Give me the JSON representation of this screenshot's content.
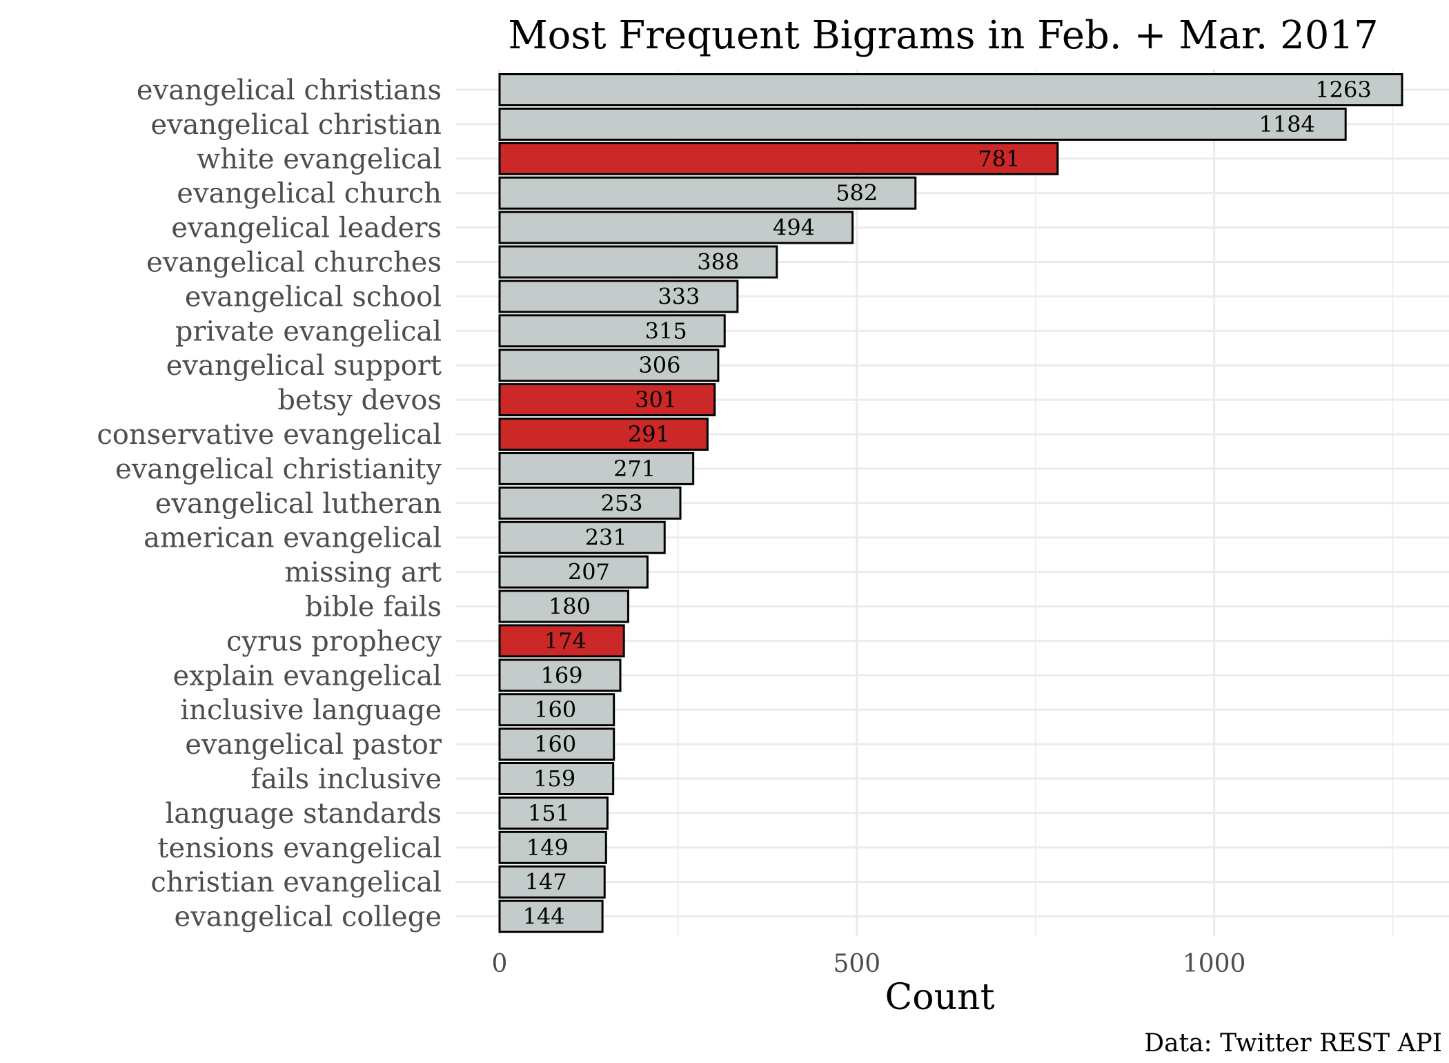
{
  "chart_data": {
    "type": "bar",
    "orientation": "horizontal",
    "title": "Most Frequent Bigrams in Feb. + Mar. 2017",
    "xlabel": "Count",
    "ylabel": "",
    "caption": "Data: Twitter REST API",
    "xlim": [
      0,
      1300
    ],
    "x_ticks": [
      0,
      500,
      1000
    ],
    "x_tick_labels": [
      "0",
      "500",
      "1000"
    ],
    "grid": true,
    "colors": {
      "default": "#c3cbcb",
      "highlight": "#cc2828",
      "outline": "#000000",
      "grid": "#ebebeb"
    },
    "categories": [
      "evangelical christians",
      "evangelical christian",
      "white evangelical",
      "evangelical church",
      "evangelical leaders",
      "evangelical churches",
      "evangelical school",
      "private evangelical",
      "evangelical support",
      "betsy devos",
      "conservative evangelical",
      "evangelical christianity",
      "evangelical lutheran",
      "american evangelical",
      "missing art",
      "bible fails",
      "cyrus prophecy",
      "explain evangelical",
      "inclusive language",
      "evangelical pastor",
      "fails inclusive",
      "language standards",
      "tensions evangelical",
      "christian evangelical",
      "evangelical college"
    ],
    "values": [
      1263,
      1184,
      781,
      582,
      494,
      388,
      333,
      315,
      306,
      301,
      291,
      271,
      253,
      231,
      207,
      180,
      174,
      169,
      160,
      160,
      159,
      151,
      149,
      147,
      144
    ],
    "value_labels": [
      "1263",
      "1184",
      "781",
      "582",
      "494",
      "388",
      "333",
      "315",
      "306",
      "301",
      "291",
      "271",
      "253",
      "231",
      "207",
      "180",
      "174",
      "169",
      "160",
      "160",
      "159",
      "151",
      "149",
      "147",
      "144"
    ],
    "highlighted": [
      false,
      false,
      true,
      false,
      false,
      false,
      false,
      false,
      false,
      true,
      true,
      false,
      false,
      false,
      false,
      false,
      true,
      false,
      false,
      false,
      false,
      false,
      false,
      false,
      false
    ]
  }
}
